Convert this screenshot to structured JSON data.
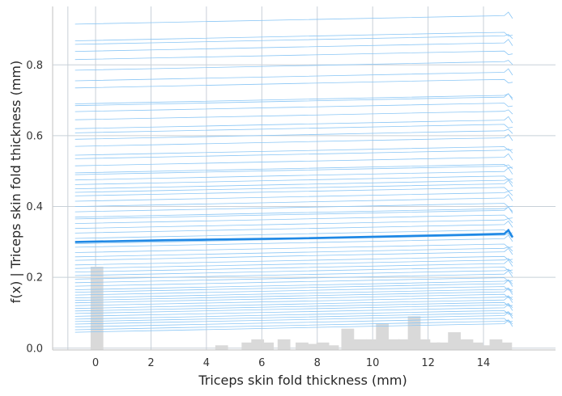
{
  "chart_data": {
    "type": "line",
    "title": "",
    "xlabel": "Triceps skin fold thickness (mm)",
    "ylabel": "f(x) | Triceps skin fold thickness (mm)",
    "xlim": [
      -1.55,
      16.6
    ],
    "ylim": [
      -0.005,
      0.965
    ],
    "x_ticks": [
      0,
      2,
      4,
      6,
      8,
      10,
      12,
      14
    ],
    "y_ticks": [
      0.0,
      0.2,
      0.4,
      0.6,
      0.8
    ],
    "x_tick_labels": [
      "0",
      "2",
      "4",
      "6",
      "8",
      "10",
      "12",
      "14"
    ],
    "y_tick_labels": [
      "0.0",
      "0.2",
      "0.4",
      "0.6",
      "0.8"
    ],
    "grid": true,
    "colors": {
      "individual_lines": "#8ac6f5",
      "mean_line": "#1e88e5",
      "histogram": "#d9d9d9",
      "grid": "#c8d0d8",
      "spine": "#cccccc"
    },
    "grid_x": [
      -1.0,
      0,
      2,
      4,
      6,
      8,
      10,
      12,
      14
    ],
    "line_x": [
      -0.74,
      2.6,
      7.2,
      13.3,
      14.75,
      14.9,
      15.05
    ],
    "individual_baselines": [
      0.915,
      0.868,
      0.858,
      0.838,
      0.815,
      0.785,
      0.755,
      0.735,
      0.69,
      0.685,
      0.668,
      0.645,
      0.62,
      0.608,
      0.59,
      0.57,
      0.545,
      0.535,
      0.515,
      0.495,
      0.49,
      0.475,
      0.462,
      0.45,
      0.44,
      0.43,
      0.415,
      0.4,
      0.385,
      0.37,
      0.365,
      0.352,
      0.338,
      0.325,
      0.31,
      0.295,
      0.285,
      0.27,
      0.258,
      0.248,
      0.235,
      0.225,
      0.215,
      0.205,
      0.195,
      0.185,
      0.175,
      0.165,
      0.158,
      0.15,
      0.142,
      0.135,
      0.128,
      0.12,
      0.112,
      0.105,
      0.098,
      0.09,
      0.082,
      0.075,
      0.068,
      0.06,
      0.052,
      0.045
    ],
    "individual_slope_total": 0.022,
    "mean_line": {
      "name": "",
      "y": [
        0.3,
        0.305,
        0.31,
        0.32,
        0.323,
        0.333,
        0.313
      ]
    },
    "histogram": {
      "bin_width": 0.46,
      "bins": [
        {
          "x": 0.05,
          "height": 0.23
        },
        {
          "x": 4.55,
          "height": 0.008
        },
        {
          "x": 5.5,
          "height": 0.016
        },
        {
          "x": 5.85,
          "height": 0.025
        },
        {
          "x": 6.2,
          "height": 0.016
        },
        {
          "x": 6.8,
          "height": 0.025
        },
        {
          "x": 7.45,
          "height": 0.016
        },
        {
          "x": 7.85,
          "height": 0.012
        },
        {
          "x": 8.2,
          "height": 0.016
        },
        {
          "x": 8.55,
          "height": 0.008
        },
        {
          "x": 9.1,
          "height": 0.055
        },
        {
          "x": 9.55,
          "height": 0.025
        },
        {
          "x": 10.0,
          "height": 0.025
        },
        {
          "x": 10.35,
          "height": 0.07
        },
        {
          "x": 10.75,
          "height": 0.025
        },
        {
          "x": 11.15,
          "height": 0.025
        },
        {
          "x": 11.5,
          "height": 0.09
        },
        {
          "x": 11.85,
          "height": 0.025
        },
        {
          "x": 12.2,
          "height": 0.016
        },
        {
          "x": 12.55,
          "height": 0.016
        },
        {
          "x": 12.95,
          "height": 0.045
        },
        {
          "x": 13.4,
          "height": 0.025
        },
        {
          "x": 13.75,
          "height": 0.016
        },
        {
          "x": 14.1,
          "height": 0.008
        },
        {
          "x": 14.45,
          "height": 0.025
        },
        {
          "x": 14.8,
          "height": 0.016
        }
      ]
    }
  }
}
